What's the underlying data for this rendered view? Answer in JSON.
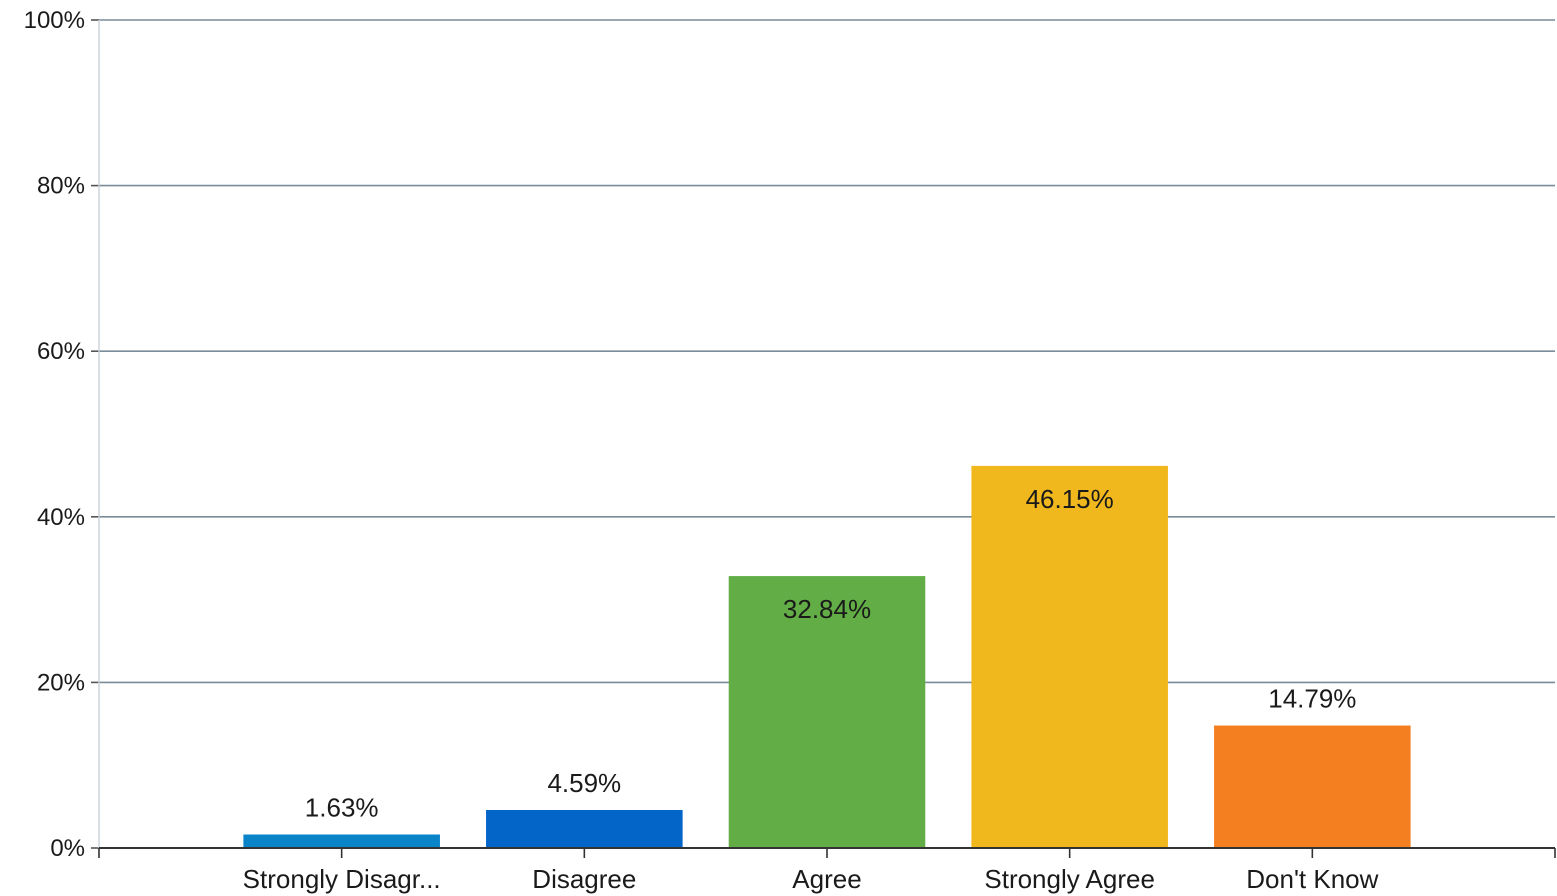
{
  "chart_data": {
    "type": "bar",
    "title": "",
    "xlabel": "",
    "ylabel": "",
    "categories": [
      "Strongly Disagr...",
      "Disagree",
      "Agree",
      "Strongly Agree",
      "Don't Know"
    ],
    "values": [
      1.63,
      4.59,
      32.84,
      46.15,
      14.79
    ],
    "value_labels": [
      "1.63%",
      "4.59%",
      "32.84%",
      "46.15%",
      "14.79%"
    ],
    "label_position": [
      "above",
      "above",
      "inside-top",
      "inside-top",
      "above"
    ],
    "colors": [
      "#0a84c9",
      "#0465c9",
      "#62ad45",
      "#f1b81e",
      "#f47f20"
    ],
    "ylim": [
      0,
      100
    ],
    "y_ticks": [
      0,
      20,
      40,
      60,
      80,
      100
    ],
    "y_tick_labels": [
      "0%",
      "20%",
      "40%",
      "60%",
      "80%",
      "100%"
    ],
    "grid": true,
    "gridline_color": "#7a8c9a",
    "legend": "none"
  }
}
